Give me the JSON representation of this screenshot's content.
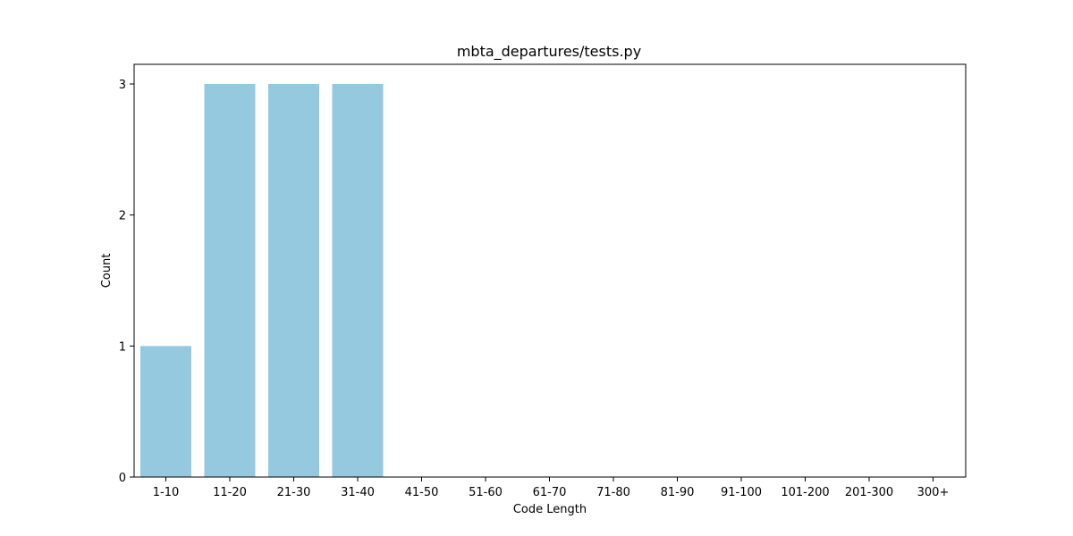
{
  "chart_data": {
    "type": "bar",
    "title": "mbta_departures/tests.py",
    "xlabel": "Code Length",
    "ylabel": "Count",
    "categories": [
      "1-10",
      "11-20",
      "21-30",
      "31-40",
      "41-50",
      "51-60",
      "61-70",
      "71-80",
      "81-90",
      "91-100",
      "101-200",
      "201-300",
      "300+"
    ],
    "values": [
      1,
      3,
      3,
      3,
      0,
      0,
      0,
      0,
      0,
      0,
      0,
      0,
      0
    ],
    "ylim": [
      0,
      3.15
    ],
    "yticks": [
      0,
      1,
      2,
      3
    ],
    "bar_color": "#95c9df",
    "grid": false,
    "legend": "none"
  }
}
